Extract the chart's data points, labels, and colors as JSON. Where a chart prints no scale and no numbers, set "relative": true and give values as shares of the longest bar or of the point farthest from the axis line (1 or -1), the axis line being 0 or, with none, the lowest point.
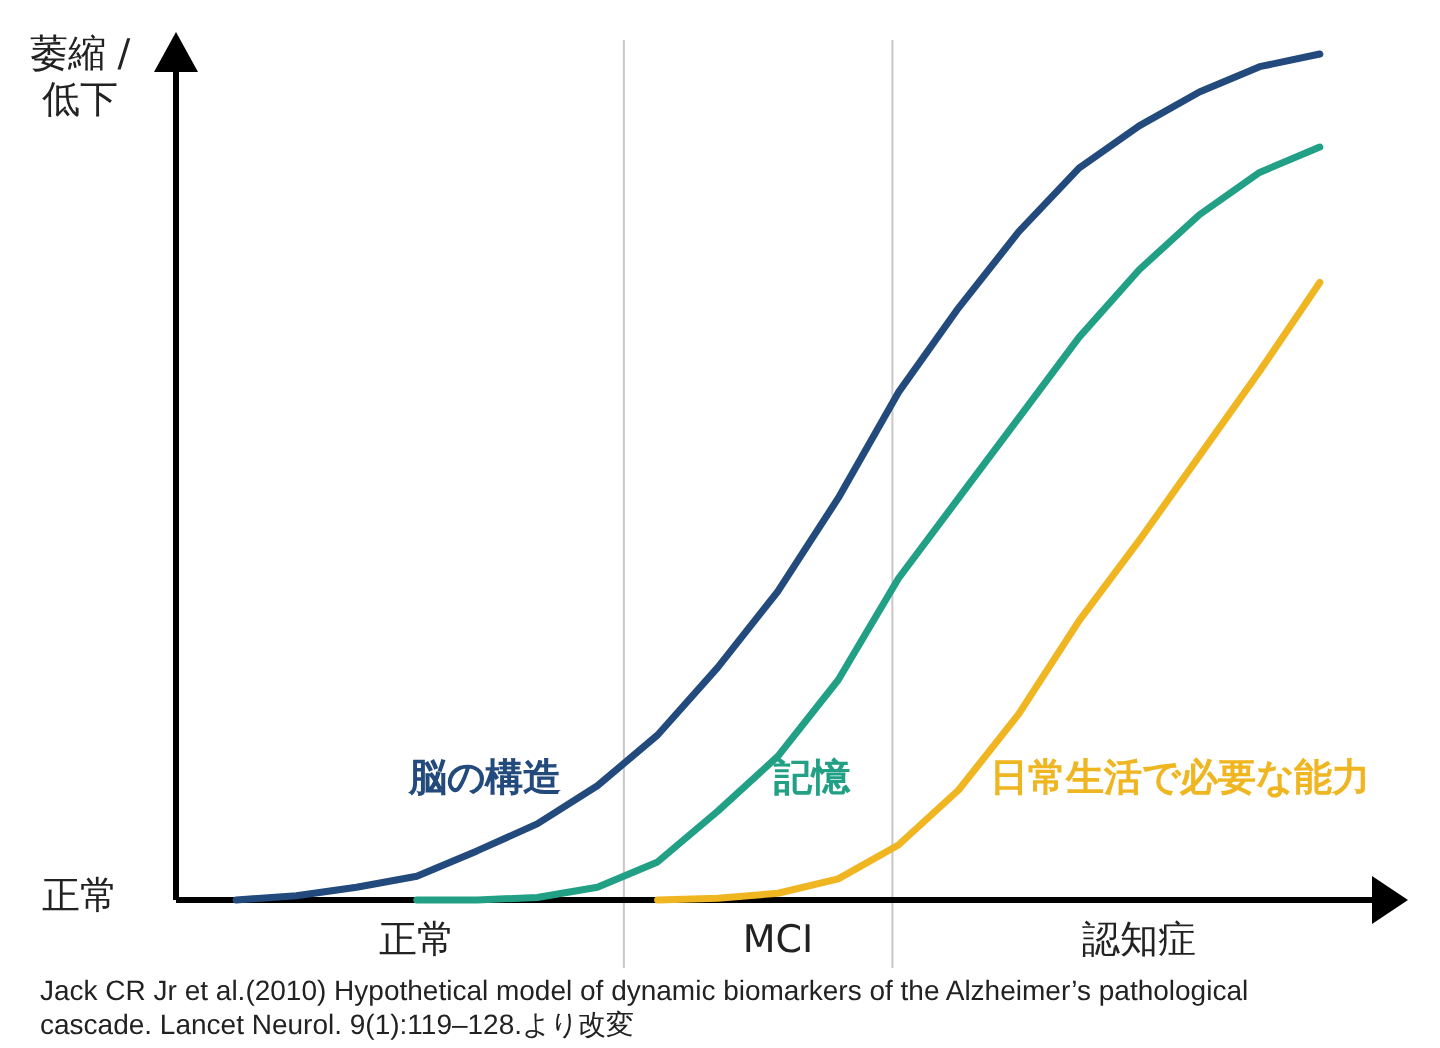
{
  "chart_data": {
    "type": "line",
    "relative": true,
    "ylabel": "萎縮 / 低下",
    "categories": [
      null,
      null,
      null,
      null,
      "正常",
      null,
      null,
      null,
      null,
      null,
      "MCI",
      null,
      null,
      null,
      null,
      null,
      "認知症",
      null,
      null,
      null
    ],
    "series": [
      {
        "name": "脳の構造",
        "color": "#234a7c",
        "values": [
          null,
          0,
          0.005,
          0.015,
          0.028,
          0.058,
          0.09,
          0.135,
          0.195,
          0.275,
          0.365,
          0.475,
          0.6,
          0.7,
          0.79,
          0.865,
          0.915,
          0.955,
          0.985,
          1
        ]
      },
      {
        "name": "記憶",
        "color": "#22a085",
        "values": [
          null,
          null,
          null,
          null,
          0,
          0,
          0.003,
          0.015,
          0.045,
          0.105,
          0.17,
          0.26,
          0.38,
          0.475,
          0.57,
          0.665,
          0.745,
          0.81,
          0.86,
          0.89
        ]
      },
      {
        "name": "日常生活で必要な能力",
        "color": "#f0b622",
        "values": [
          null,
          null,
          null,
          null,
          null,
          null,
          null,
          null,
          0,
          0.002,
          0.008,
          0.025,
          0.065,
          0.13,
          0.22,
          0.33,
          0.425,
          0.525,
          0.625,
          0.73
        ]
      }
    ],
    "annotations": [
      "正常",
      "Jack CR Jr et al.(2010) Hypothetical model of dynamic biomarkers of the Alzheimer’s pathological cascade. Lancet Neurol. 9(1):119–128.より改変"
    ]
  }
}
